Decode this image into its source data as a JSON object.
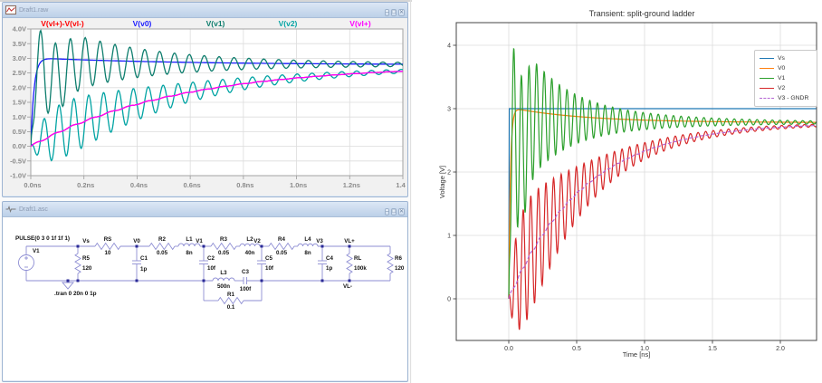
{
  "left_panel": {
    "window_controls": [
      {
        "name": "minimize",
        "glyph": "–"
      },
      {
        "name": "maximize",
        "glyph": "□"
      },
      {
        "name": "close",
        "glyph": "✕"
      }
    ],
    "waveform_window": {
      "title": "Draft1.raw",
      "traces": [
        {
          "label": "V(vl+)-V(vl-)",
          "color": "#ff0000",
          "signal": "VL"
        },
        {
          "label": "V(v0)",
          "color": "#1a1aff",
          "signal": "V0"
        },
        {
          "label": "V(v1)",
          "color": "#0d7d6d",
          "signal": "V1"
        },
        {
          "label": "V(v2)",
          "color": "#00a3a3",
          "signal": "V2"
        },
        {
          "label": "V(vl+)",
          "color": "#ff00ff",
          "signal": "VL"
        }
      ],
      "y_ticks": [
        "4.0V",
        "3.5V",
        "3.0V",
        "2.5V",
        "2.0V",
        "1.5V",
        "1.0V",
        "0.5V",
        "0.0V",
        "-0.5V",
        "-1.0V"
      ],
      "x_ticks": [
        "0.0ns",
        "0.2ns",
        "0.4ns",
        "0.6ns",
        "0.8ns",
        "1.0ns",
        "1.2ns",
        "1.4ns"
      ]
    },
    "schematic_window": {
      "title": "Draft1.asc",
      "source": {
        "name": "V1",
        "pulse": "PULSE(0 3 0 1f 1f 1)"
      },
      "directive": ".tran 0 20n 0 1p",
      "net_labels": [
        "Vs",
        "V0",
        "V1",
        "V2",
        "V3",
        "VL+",
        "VL-"
      ],
      "components": [
        {
          "name": "RS",
          "value": "10"
        },
        {
          "name": "R5",
          "value": "120"
        },
        {
          "name": "C1",
          "value": "1p"
        },
        {
          "name": "R2",
          "value": "0.05"
        },
        {
          "name": "L1",
          "value": "8n"
        },
        {
          "name": "C2",
          "value": "10f"
        },
        {
          "name": "R3",
          "value": "0.05"
        },
        {
          "name": "L2",
          "value": "40n"
        },
        {
          "name": "C5",
          "value": "10f"
        },
        {
          "name": "R4",
          "value": "0.05"
        },
        {
          "name": "L4",
          "value": "8n"
        },
        {
          "name": "C4",
          "value": "1p"
        },
        {
          "name": "RL",
          "value": "100k"
        },
        {
          "name": "R6",
          "value": "120"
        },
        {
          "name": "L3",
          "value": "500n"
        },
        {
          "name": "C3",
          "value": "100f"
        },
        {
          "name": "R1",
          "value": "0.1"
        }
      ]
    }
  },
  "chart_data": {
    "type": "line",
    "title": "Transient: split-ground ladder",
    "xlabel": "Time [ns]",
    "ylabel": "Voltage [V]",
    "xlim": [
      -0.39,
      2.27
    ],
    "ylim": [
      -0.66,
      4.36
    ],
    "xtick_values": [
      0,
      0.5,
      1.0,
      1.5,
      2.0
    ],
    "xtick_labels": [
      "0.0",
      "0.5",
      "1.0",
      "1.5",
      "2.0"
    ],
    "ytick_values": [
      0,
      1,
      2,
      3,
      4
    ],
    "ytick_labels": [
      "0",
      "1",
      "2",
      "3",
      "4"
    ],
    "grid": true,
    "legend_position": "upper right",
    "t_start_ns": 0,
    "t_end_ns": 2.25,
    "v_final": 2.78,
    "rise_tau_ns": 0.55,
    "series": [
      {
        "name": "Vs",
        "color": "#1f77b4",
        "style": "solid",
        "shape": "step",
        "level": 3.0
      },
      {
        "name": "V0",
        "color": "#ff7f0e",
        "style": "solid",
        "shape": "fast-rise-settle",
        "peak": 3.02,
        "settle": 2.78
      },
      {
        "name": "V1",
        "color": "#2ca02c",
        "style": "solid",
        "shape": "damped-ringing",
        "first_peak": 3.9,
        "first_min": 1.0,
        "period_ns": 0.056,
        "settle": 2.78
      },
      {
        "name": "V2",
        "color": "#d62728",
        "style": "solid",
        "shape": "ringing-about-rise",
        "min": -0.45,
        "period_ns": 0.056,
        "settle": 2.78
      },
      {
        "name": "V3 - GNDR",
        "color": "#b465d4",
        "style": "dashed",
        "shape": "exp-rise",
        "tau_ns": 0.55,
        "settle": 2.78
      }
    ]
  }
}
